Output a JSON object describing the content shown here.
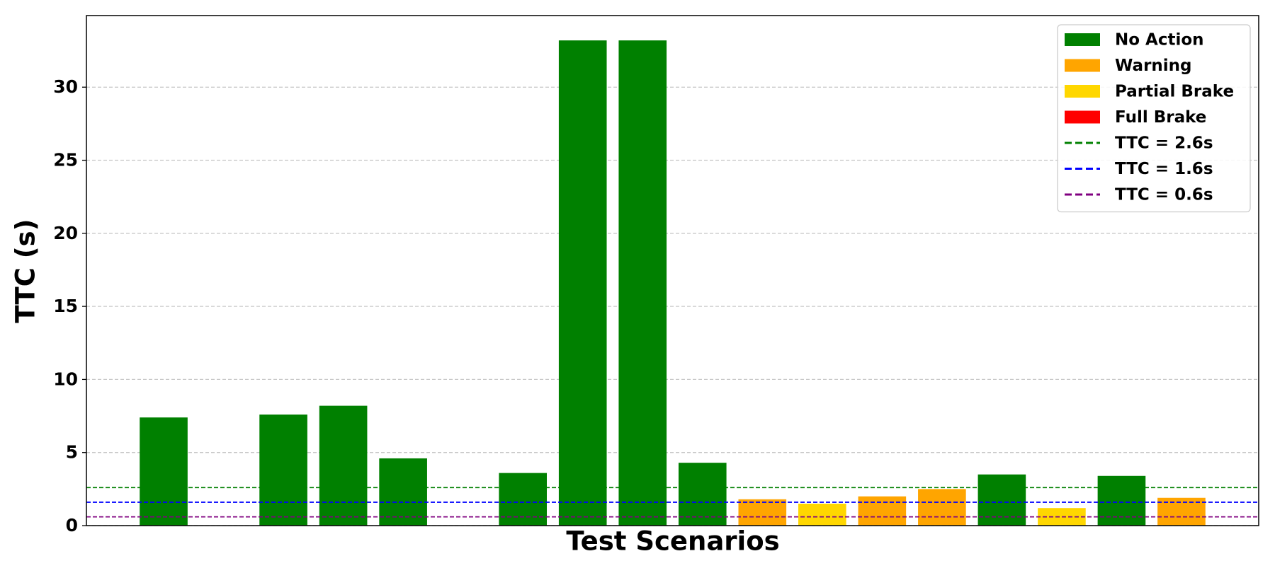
{
  "chart_data": {
    "type": "bar",
    "xlabel": "Test Scenarios",
    "ylabel": "TTC (s)",
    "categories": [
      null,
      null,
      null,
      null,
      null,
      null,
      null,
      null,
      null,
      null,
      null,
      null,
      null,
      null,
      null,
      null,
      null,
      null
    ],
    "series": [
      {
        "name": "No Action",
        "color": "#008000",
        "values": [
          7.4,
          null,
          7.6,
          8.2,
          4.6,
          null,
          3.6,
          33.2,
          33.2,
          4.3,
          null,
          null,
          null,
          null,
          3.5,
          null,
          3.4,
          null
        ]
      },
      {
        "name": "Warning",
        "color": "#ffa500",
        "values": [
          null,
          null,
          null,
          null,
          null,
          null,
          null,
          null,
          null,
          null,
          1.8,
          null,
          2.0,
          2.5,
          null,
          null,
          null,
          1.9
        ]
      },
      {
        "name": "Partial Brake",
        "color": "#ffd700",
        "values": [
          null,
          null,
          null,
          null,
          null,
          null,
          null,
          null,
          null,
          null,
          null,
          1.5,
          null,
          null,
          null,
          1.2,
          null,
          null
        ]
      },
      {
        "name": "Full Brake",
        "color": "#ff0000",
        "values": [
          null,
          null,
          null,
          null,
          null,
          null,
          null,
          null,
          null,
          null,
          null,
          null,
          null,
          null,
          null,
          null,
          null,
          null
        ]
      }
    ],
    "thresholds": [
      {
        "label": "TTC = 2.6s",
        "value": 2.6,
        "color": "#008000"
      },
      {
        "label": "TTC = 1.6s",
        "value": 1.6,
        "color": "#0000ff"
      },
      {
        "label": "TTC = 0.6s",
        "value": 0.6,
        "color": "#800080"
      }
    ],
    "ylim": [
      0,
      34.9
    ],
    "yticks": [
      0,
      5,
      10,
      15,
      20,
      25,
      30
    ],
    "grid": true,
    "legend": "upper right"
  }
}
